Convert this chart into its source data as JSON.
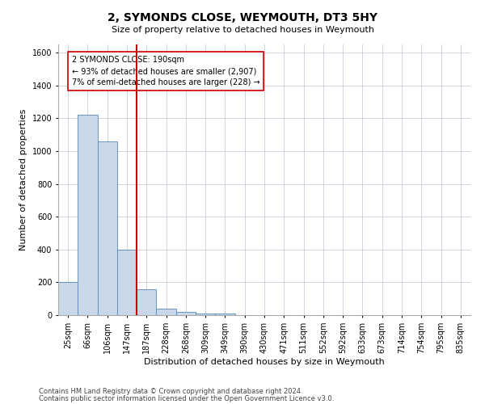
{
  "title": "2, SYMONDS CLOSE, WEYMOUTH, DT3 5HY",
  "subtitle": "Size of property relative to detached houses in Weymouth",
  "xlabel": "Distribution of detached houses by size in Weymouth",
  "ylabel": "Number of detached properties",
  "categories": [
    "25sqm",
    "66sqm",
    "106sqm",
    "147sqm",
    "187sqm",
    "228sqm",
    "268sqm",
    "309sqm",
    "349sqm",
    "390sqm",
    "430sqm",
    "471sqm",
    "511sqm",
    "552sqm",
    "592sqm",
    "633sqm",
    "673sqm",
    "714sqm",
    "754sqm",
    "795sqm",
    "835sqm"
  ],
  "values": [
    200,
    1220,
    1060,
    400,
    160,
    40,
    20,
    10,
    10,
    0,
    0,
    0,
    0,
    0,
    0,
    0,
    0,
    0,
    0,
    0,
    0
  ],
  "bar_color": "#c8d8e8",
  "bar_edge_color": "#5588bb",
  "highlight_line_bin": 4,
  "highlight_line_color": "#cc0000",
  "annotation_text": "2 SYMONDS CLOSE: 190sqm\n← 93% of detached houses are smaller (2,907)\n7% of semi-detached houses are larger (228) →",
  "annotation_box_color": "#ffffff",
  "annotation_box_edge_color": "#cc0000",
  "ylim": [
    0,
    1650
  ],
  "yticks": [
    0,
    200,
    400,
    600,
    800,
    1000,
    1200,
    1400,
    1600
  ],
  "footer_line1": "Contains HM Land Registry data © Crown copyright and database right 2024.",
  "footer_line2": "Contains public sector information licensed under the Open Government Licence v3.0.",
  "background_color": "#ffffff",
  "grid_color": "#ccccdd",
  "title_fontsize": 10,
  "subtitle_fontsize": 8,
  "xlabel_fontsize": 8,
  "ylabel_fontsize": 8,
  "tick_fontsize": 7,
  "footer_fontsize": 6,
  "annotation_fontsize": 7
}
